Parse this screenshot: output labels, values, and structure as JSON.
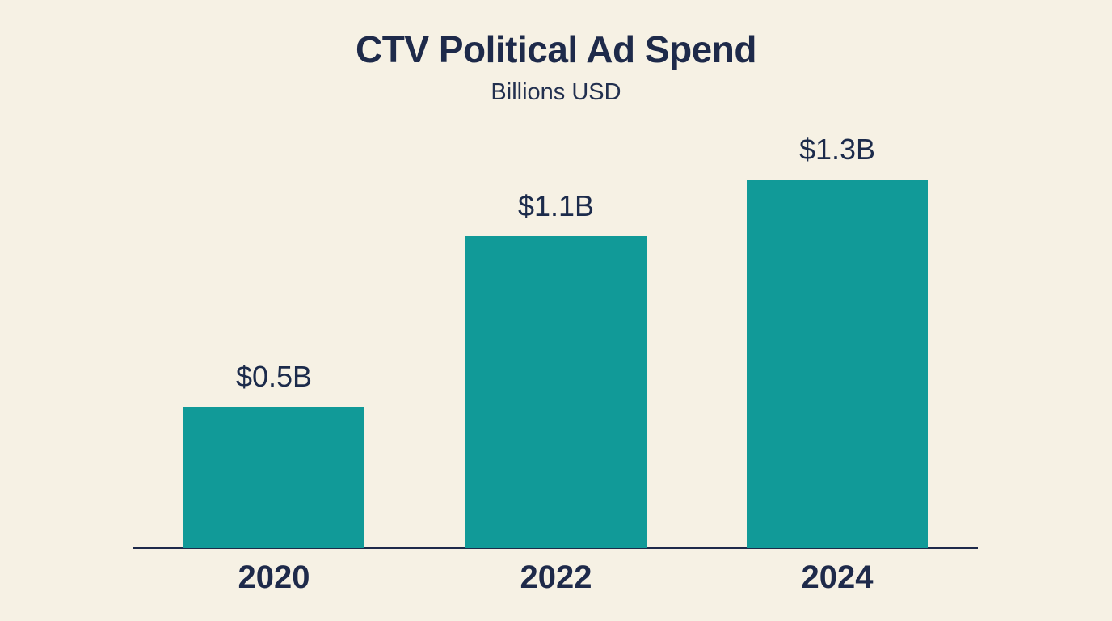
{
  "header": {
    "title": "CTV Political Ad Spend",
    "subtitle": "Billions USD"
  },
  "colors": {
    "background": "#F6F1E4",
    "bar": "#119A98",
    "text": "#1E2A4A",
    "axis": "#1E2A4A"
  },
  "chart_data": {
    "type": "bar",
    "title": "CTV Political Ad Spend",
    "subtitle": "Billions USD",
    "categories": [
      "2020",
      "2022",
      "2024"
    ],
    "values": [
      0.5,
      1.1,
      1.3
    ],
    "value_labels": [
      "$0.5B",
      "$1.1B",
      "$1.3B"
    ],
    "ylabel": "Billions USD",
    "ylim": [
      0,
      1.3
    ],
    "grid": false,
    "legend": false,
    "orientation": "vertical"
  }
}
